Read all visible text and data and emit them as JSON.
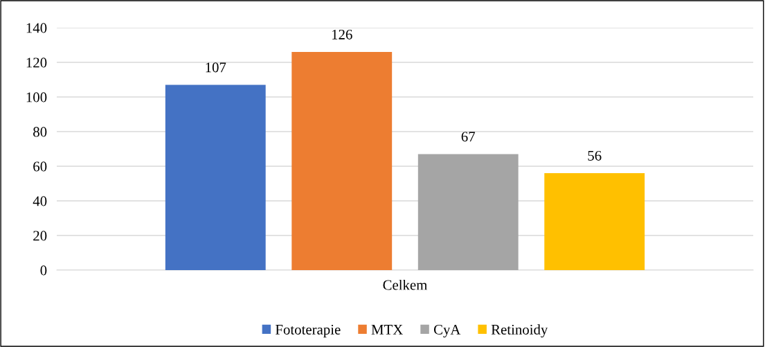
{
  "chart_data": {
    "type": "bar",
    "categories": [
      "Celkem"
    ],
    "series": [
      {
        "name": "Fototerapie",
        "color": "#4472c4",
        "values": [
          107
        ]
      },
      {
        "name": "MTX",
        "color": "#ed7d31",
        "values": [
          126
        ]
      },
      {
        "name": "CyA",
        "color": "#a5a5a5",
        "values": [
          67
        ]
      },
      {
        "name": "Retinoidy",
        "color": "#ffc000",
        "values": [
          56
        ]
      }
    ],
    "ylim": [
      0,
      140
    ],
    "yticks": [
      0,
      20,
      40,
      60,
      80,
      100,
      120,
      140
    ],
    "grid": "y",
    "legend": "bottom",
    "data_labels": true
  }
}
